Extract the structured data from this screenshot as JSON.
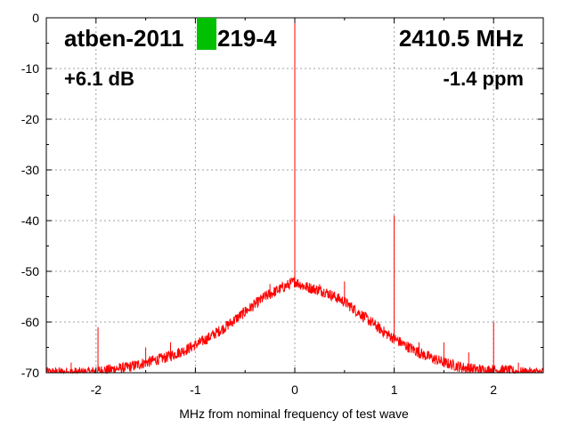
{
  "chart_data": {
    "type": "line",
    "xlabel": "MHz from nominal frequency of test wave",
    "ylabel": "",
    "xlim": [
      -2.5,
      2.5
    ],
    "ylim": [
      -70,
      0
    ],
    "x_ticks": [
      -2,
      -1,
      0,
      1,
      2
    ],
    "x_tick_labels": [
      "-2",
      "-1",
      "0",
      "1",
      "2"
    ],
    "y_ticks": [
      0,
      -10,
      -20,
      -30,
      -40,
      -50,
      -60,
      -70
    ],
    "y_tick_labels": [
      "0",
      "-10",
      "-20",
      "-30",
      "-40",
      "-50",
      "-60",
      "-70"
    ],
    "grid": true,
    "series": [
      {
        "color": "#ff0000",
        "x": [
          -2.5,
          -2.3,
          -2.1,
          -1.9,
          -1.7,
          -1.5,
          -1.3,
          -1.1,
          -0.9,
          -0.7,
          -0.5,
          -0.3,
          -0.1,
          0.0,
          0.1,
          0.3,
          0.5,
          0.7,
          0.9,
          1.1,
          1.3,
          1.5,
          1.7,
          1.9,
          2.1,
          2.3,
          2.5
        ],
        "y": [
          -70,
          -70,
          -70,
          -69.5,
          -69,
          -68,
          -67,
          -65.5,
          -63.5,
          -61,
          -58,
          -55,
          -53,
          -52,
          -53,
          -54,
          -56,
          -59,
          -62,
          -64.5,
          -66.5,
          -68,
          -69,
          -69.5,
          -69.5,
          -70,
          -70
        ]
      }
    ],
    "spikes": [
      {
        "x": 0.0,
        "y": 0
      },
      {
        "x": 0.0,
        "y": -29
      },
      {
        "x": -2.25,
        "y": -68
      },
      {
        "x": -1.98,
        "y": -61
      },
      {
        "x": -1.5,
        "y": -65
      },
      {
        "x": -1.25,
        "y": -64
      },
      {
        "x": -0.5,
        "y": -57
      },
      {
        "x": -0.25,
        "y": -52.5
      },
      {
        "x": 0.25,
        "y": -52.5
      },
      {
        "x": 0.5,
        "y": -52
      },
      {
        "x": 1.0,
        "y": -39
      },
      {
        "x": 1.25,
        "y": -64
      },
      {
        "x": 1.5,
        "y": -64
      },
      {
        "x": 1.75,
        "y": -66
      },
      {
        "x": 2.0,
        "y": -60
      },
      {
        "x": 2.25,
        "y": -68
      }
    ],
    "annotations": {
      "device": "atben-2011",
      "device_suffix": "219-4",
      "frequency": "2410.5 MHz",
      "gain": "+6.1 dB",
      "ppm": "-1.4 ppm"
    },
    "colors": {
      "trace": "#ff0000",
      "grid": "#a0a0a0",
      "marker": "#00c000"
    }
  }
}
